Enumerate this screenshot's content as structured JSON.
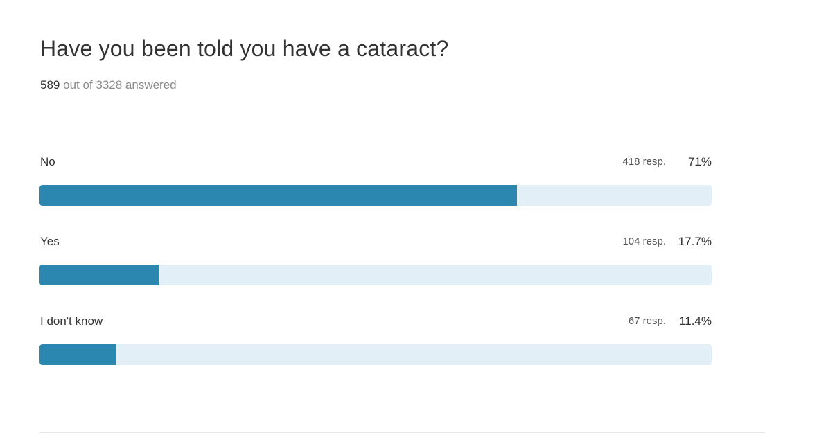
{
  "question": {
    "title": "Have you been told you have a cataract?",
    "answered_count": "589",
    "answered_suffix": "out of 3328 answered"
  },
  "colors": {
    "bar_fill": "#2b86b0",
    "bar_track": "#e2eff6"
  },
  "chart_data": {
    "type": "bar",
    "orientation": "horizontal",
    "title": "Have you been told you have a cataract?",
    "categories": [
      "No",
      "Yes",
      "I don't know"
    ],
    "values": [
      71,
      17.7,
      11.4
    ],
    "responses": [
      418,
      104,
      67
    ],
    "xlim": [
      0,
      100
    ],
    "rows": [
      {
        "label": "No",
        "resp_text": "418 resp.",
        "pct_text": "71%",
        "percent": 71
      },
      {
        "label": "Yes",
        "resp_text": "104 resp.",
        "pct_text": "17.7%",
        "percent": 17.7
      },
      {
        "label": "I don't know",
        "resp_text": "67 resp.",
        "pct_text": "11.4%",
        "percent": 11.4
      }
    ]
  }
}
